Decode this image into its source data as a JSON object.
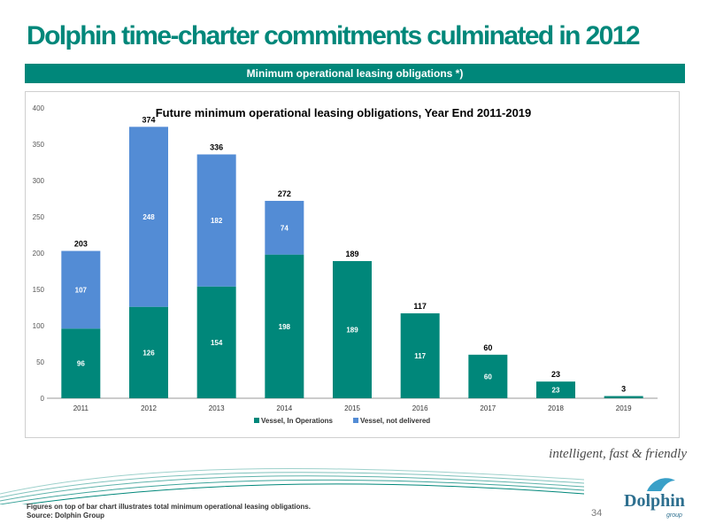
{
  "page": {
    "title": "Dolphin time-charter commitments culminated in 2012",
    "banner": "Minimum operational leasing obligations *)",
    "tagline": "intelligent, fast & friendly",
    "footnote_line1": "Figures on top of bar chart illustrates total minimum operational leasing obligations.",
    "footnote_line2": "Source: Dolphin Group",
    "page_number": "34",
    "logo_text": "Dolphin",
    "logo_sub": "group",
    "colors": {
      "brand_teal": "#00877a",
      "series_dark": "#00877a",
      "series_light": "#538cd5"
    }
  },
  "chart_data": {
    "type": "bar",
    "stacked": true,
    "title": "Future minimum operational leasing obligations, Year End 2011-2019",
    "categories": [
      "2011",
      "2012",
      "2013",
      "2014",
      "2015",
      "2016",
      "2017",
      "2018",
      "2019"
    ],
    "series": [
      {
        "name": "Vessel, In Operations",
        "color": "#00877a",
        "values": [
          96,
          126,
          154,
          198,
          189,
          117,
          60,
          23,
          3
        ]
      },
      {
        "name": "Vessel, not delivered",
        "color": "#538cd5",
        "values": [
          107,
          248,
          182,
          74,
          0,
          0,
          0,
          0,
          0
        ]
      }
    ],
    "totals": [
      203,
      374,
      336,
      272,
      189,
      117,
      60,
      23,
      3
    ],
    "ylim": [
      0,
      400
    ],
    "yticks": [
      0,
      50,
      100,
      150,
      200,
      250,
      300,
      350,
      400
    ],
    "legend_position": "bottom",
    "grid": false
  }
}
